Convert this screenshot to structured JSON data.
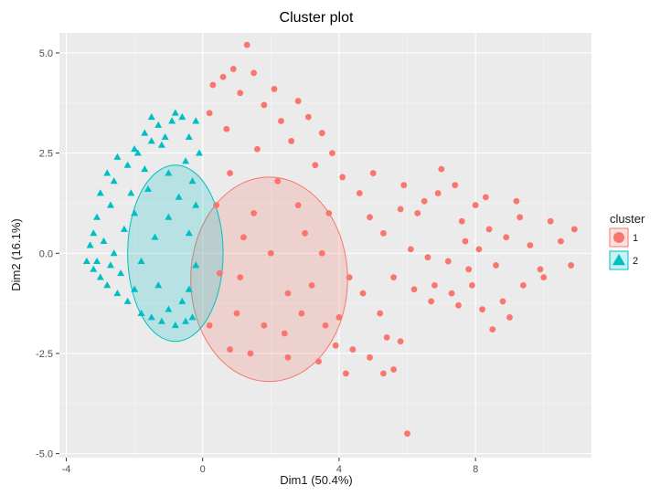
{
  "chart_data": {
    "type": "scatter",
    "title": "Cluster plot",
    "xlabel": "Dim1 (50.4%)",
    "ylabel": "Dim2 (16.1%)",
    "xlim": [
      -4.2,
      11.4
    ],
    "ylim": [
      -5.1,
      5.5
    ],
    "xticks": [
      -4,
      0,
      4,
      8
    ],
    "xtick_labels": [
      "-4",
      "0",
      "4",
      "8"
    ],
    "yticks": [
      -5,
      -2.5,
      0,
      2.5,
      5
    ],
    "ytick_labels": [
      "-5.0",
      "-2.5",
      "0.0",
      "2.5",
      "5.0"
    ],
    "grid": true,
    "legend": {
      "title": "cluster",
      "placement": "right",
      "entries": [
        {
          "label": "1",
          "color": "#F8766D",
          "marker": "circle"
        },
        {
          "label": "2",
          "color": "#00BFC4",
          "marker": "triangle"
        }
      ]
    },
    "ellipses": [
      {
        "cluster": "1",
        "center": [
          1.95,
          -0.65
        ],
        "rx": 2.3,
        "ry": 2.55,
        "color": "#F8766D"
      },
      {
        "cluster": "2",
        "center": [
          -0.8,
          0.0
        ],
        "rx": 1.4,
        "ry": 2.2,
        "color": "#00BFC4"
      }
    ],
    "series": [
      {
        "name": "1",
        "color": "#F8766D",
        "marker": "circle",
        "points": [
          [
            1.3,
            5.2
          ],
          [
            0.9,
            4.6
          ],
          [
            1.5,
            4.5
          ],
          [
            0.6,
            4.4
          ],
          [
            1.1,
            4.0
          ],
          [
            0.3,
            4.2
          ],
          [
            2.1,
            4.1
          ],
          [
            1.8,
            3.7
          ],
          [
            2.8,
            3.8
          ],
          [
            2.3,
            3.3
          ],
          [
            3.1,
            3.4
          ],
          [
            3.5,
            3.0
          ],
          [
            0.2,
            3.5
          ],
          [
            0.7,
            3.1
          ],
          [
            2.6,
            2.8
          ],
          [
            3.8,
            2.5
          ],
          [
            3.3,
            2.2
          ],
          [
            4.1,
            1.9
          ],
          [
            4.6,
            1.5
          ],
          [
            4.9,
            0.9
          ],
          [
            5.3,
            0.5
          ],
          [
            4.3,
            -0.6
          ],
          [
            4.7,
            -1.0
          ],
          [
            4.0,
            -1.6
          ],
          [
            3.6,
            -1.8
          ],
          [
            3.9,
            -2.3
          ],
          [
            4.4,
            -2.4
          ],
          [
            4.9,
            -2.6
          ],
          [
            5.4,
            -2.1
          ],
          [
            5.8,
            -2.2
          ],
          [
            4.2,
            -3.0
          ],
          [
            5.3,
            -3.0
          ],
          [
            3.4,
            -2.7
          ],
          [
            2.5,
            -2.6
          ],
          [
            1.4,
            -2.5
          ],
          [
            0.8,
            -2.4
          ],
          [
            6.0,
            -4.5
          ],
          [
            5.6,
            -2.9
          ],
          [
            5.2,
            -1.5
          ],
          [
            6.5,
            1.3
          ],
          [
            6.9,
            1.5
          ],
          [
            7.0,
            2.1
          ],
          [
            7.4,
            1.7
          ],
          [
            7.6,
            0.8
          ],
          [
            8.0,
            1.2
          ],
          [
            8.3,
            1.4
          ],
          [
            8.4,
            0.6
          ],
          [
            8.1,
            0.1
          ],
          [
            7.8,
            -0.4
          ],
          [
            7.2,
            -0.2
          ],
          [
            6.8,
            -0.8
          ],
          [
            6.2,
            -0.9
          ],
          [
            6.7,
            -1.2
          ],
          [
            7.3,
            -1.0
          ],
          [
            7.9,
            -0.8
          ],
          [
            8.6,
            -0.3
          ],
          [
            8.9,
            0.4
          ],
          [
            9.3,
            0.9
          ],
          [
            9.6,
            0.2
          ],
          [
            9.9,
            -0.4
          ],
          [
            10.2,
            0.8
          ],
          [
            10.5,
            0.3
          ],
          [
            10.8,
            -0.3
          ],
          [
            10.9,
            0.6
          ],
          [
            10.0,
            -0.6
          ],
          [
            9.4,
            -0.8
          ],
          [
            8.8,
            -1.2
          ],
          [
            8.2,
            -1.4
          ],
          [
            7.5,
            -1.3
          ],
          [
            8.5,
            -1.9
          ],
          [
            9.0,
            -1.6
          ],
          [
            5.0,
            2.0
          ],
          [
            5.9,
            1.7
          ],
          [
            6.3,
            1.0
          ],
          [
            6.1,
            0.1
          ],
          [
            5.6,
            -0.6
          ],
          [
            6.6,
            -0.1
          ],
          [
            5.8,
            1.1
          ],
          [
            7.7,
            0.3
          ],
          [
            9.2,
            1.3
          ],
          [
            2.0,
            0.0
          ],
          [
            1.5,
            1.0
          ],
          [
            2.5,
            -1.0
          ],
          [
            1.0,
            -1.5
          ],
          [
            3.0,
            0.5
          ],
          [
            2.2,
            1.8
          ],
          [
            0.5,
            -0.5
          ],
          [
            1.8,
            -1.8
          ],
          [
            3.2,
            -0.8
          ],
          [
            0.8,
            2.0
          ],
          [
            1.2,
            0.4
          ],
          [
            2.8,
            1.2
          ],
          [
            3.5,
            0.0
          ],
          [
            0.4,
            1.2
          ],
          [
            2.4,
            -2.0
          ],
          [
            1.6,
            2.6
          ],
          [
            3.7,
            1.0
          ],
          [
            0.2,
            -1.8
          ],
          [
            2.9,
            -1.5
          ],
          [
            1.1,
            -0.6
          ]
        ]
      },
      {
        "name": "2",
        "color": "#00BFC4",
        "marker": "triangle",
        "points": [
          [
            -0.8,
            3.5
          ],
          [
            -0.9,
            3.3
          ],
          [
            -0.6,
            3.4
          ],
          [
            -0.2,
            3.3
          ],
          [
            -1.3,
            3.2
          ],
          [
            -1.7,
            3.0
          ],
          [
            -1.5,
            2.8
          ],
          [
            -2.0,
            2.6
          ],
          [
            -1.2,
            2.7
          ],
          [
            -2.5,
            2.4
          ],
          [
            -2.2,
            2.2
          ],
          [
            -1.9,
            2.5
          ],
          [
            -2.8,
            2.0
          ],
          [
            -2.6,
            1.8
          ],
          [
            -3.0,
            1.5
          ],
          [
            -2.7,
            1.2
          ],
          [
            -3.1,
            0.9
          ],
          [
            -3.2,
            0.5
          ],
          [
            -3.3,
            0.2
          ],
          [
            -3.4,
            -0.2
          ],
          [
            -3.2,
            -0.4
          ],
          [
            -3.0,
            -0.6
          ],
          [
            -2.8,
            -0.8
          ],
          [
            -2.5,
            -1.0
          ],
          [
            -2.2,
            -1.2
          ],
          [
            -1.8,
            -1.5
          ],
          [
            -1.5,
            -1.6
          ],
          [
            -1.2,
            -1.7
          ],
          [
            -0.8,
            -1.8
          ],
          [
            -0.5,
            -1.7
          ],
          [
            -0.3,
            -1.6
          ],
          [
            -1.0,
            -1.4
          ],
          [
            -2.0,
            -0.9
          ],
          [
            -2.4,
            -0.5
          ],
          [
            -2.6,
            0.0
          ],
          [
            -2.3,
            0.6
          ],
          [
            -2.0,
            1.0
          ],
          [
            -1.6,
            1.6
          ],
          [
            -1.0,
            2.0
          ],
          [
            -0.5,
            2.3
          ],
          [
            -0.3,
            1.8
          ],
          [
            -0.2,
            1.2
          ],
          [
            -0.4,
            0.5
          ],
          [
            -0.2,
            -0.3
          ],
          [
            -0.4,
            -0.9
          ],
          [
            -0.6,
            -1.2
          ],
          [
            -1.3,
            -0.8
          ],
          [
            -1.8,
            -0.2
          ],
          [
            -1.4,
            0.4
          ],
          [
            -1.0,
            0.9
          ],
          [
            -0.7,
            1.4
          ],
          [
            -1.7,
            2.1
          ],
          [
            -2.1,
            1.5
          ],
          [
            -2.9,
            0.3
          ],
          [
            -3.1,
            -0.2
          ],
          [
            -2.7,
            -0.3
          ],
          [
            -1.5,
            3.4
          ],
          [
            -1.1,
            2.9
          ],
          [
            -0.4,
            2.9
          ],
          [
            -0.1,
            2.5
          ]
        ]
      }
    ]
  }
}
